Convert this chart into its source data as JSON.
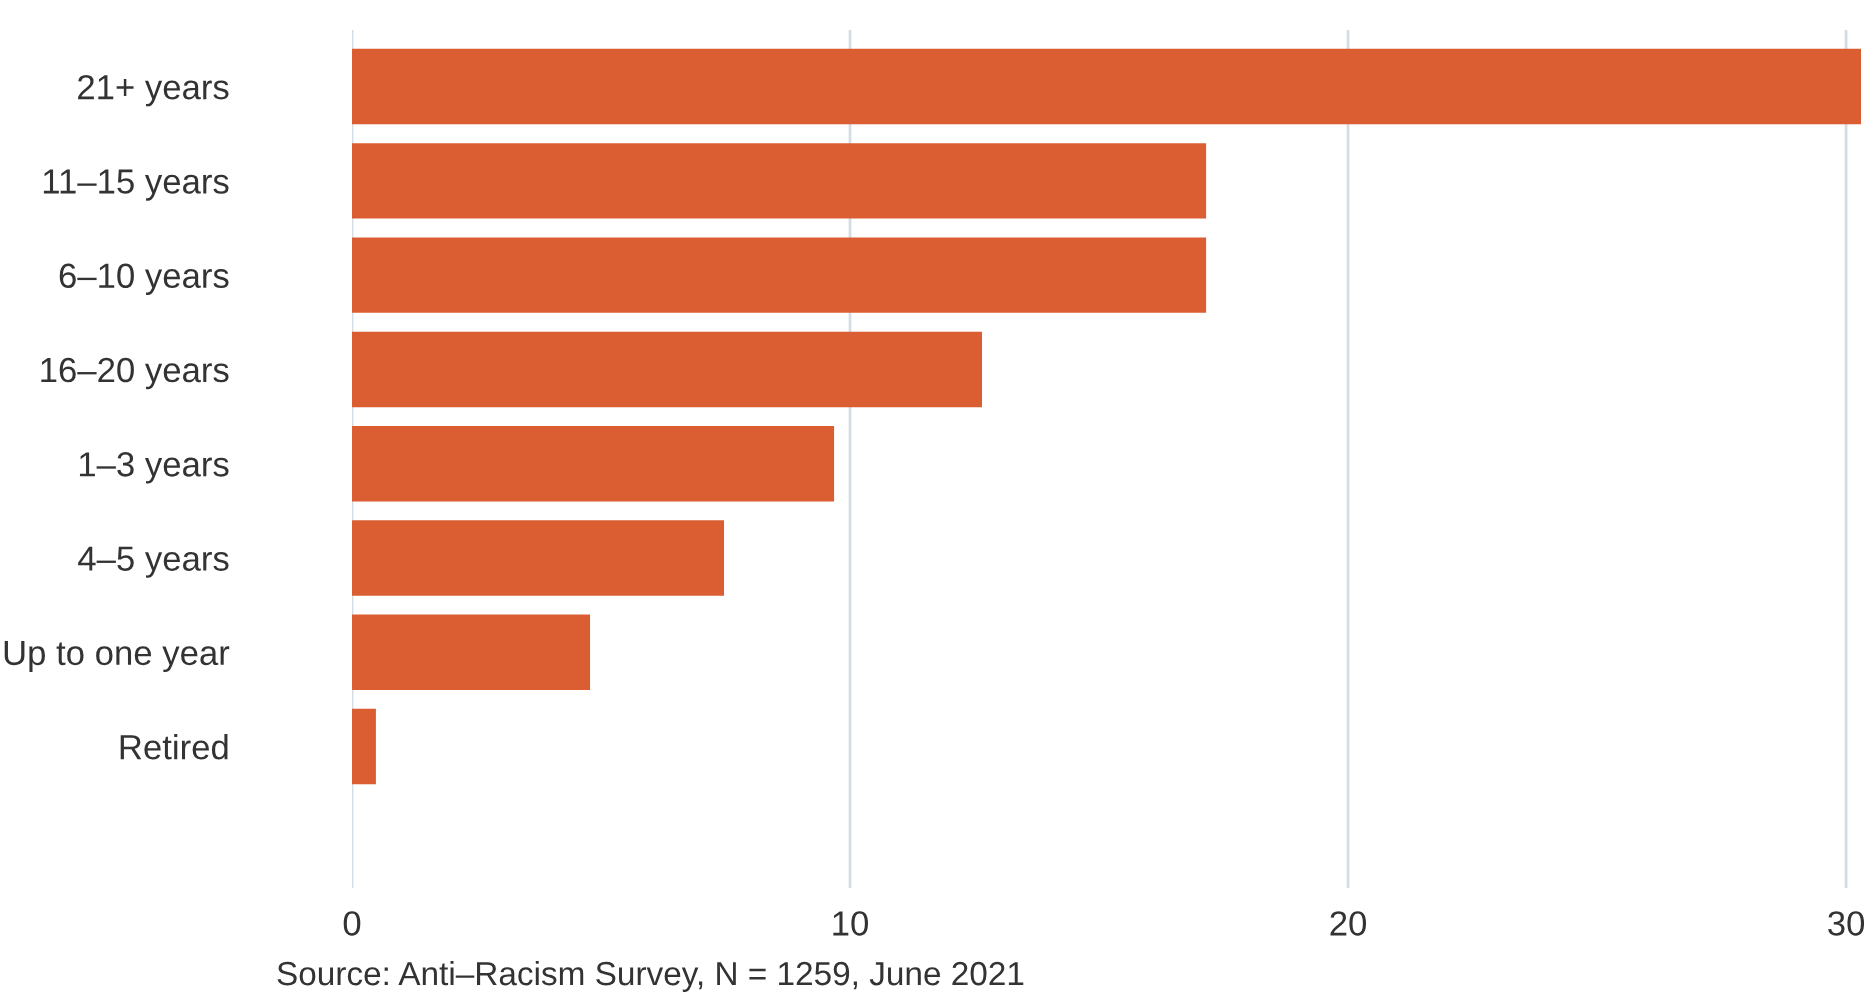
{
  "chart_data": {
    "type": "bar",
    "orientation": "horizontal",
    "categories": [
      "21+ years",
      "11–15 years",
      "6–10 years",
      "16–20 years",
      "1–3 years",
      "4–5 years",
      "Up to one year",
      "Retired"
    ],
    "values": [
      30.3,
      17.15,
      17.15,
      12.65,
      9.68,
      7.47,
      4.78,
      0.48
    ],
    "color": "#da5e32",
    "xlim": [
      0,
      30.4
    ],
    "xticks": [
      0,
      10,
      20,
      30
    ],
    "grid": "x",
    "annotations": [
      "Source: Anti–Racism Survey, N = 1259, June 2021"
    ]
  }
}
